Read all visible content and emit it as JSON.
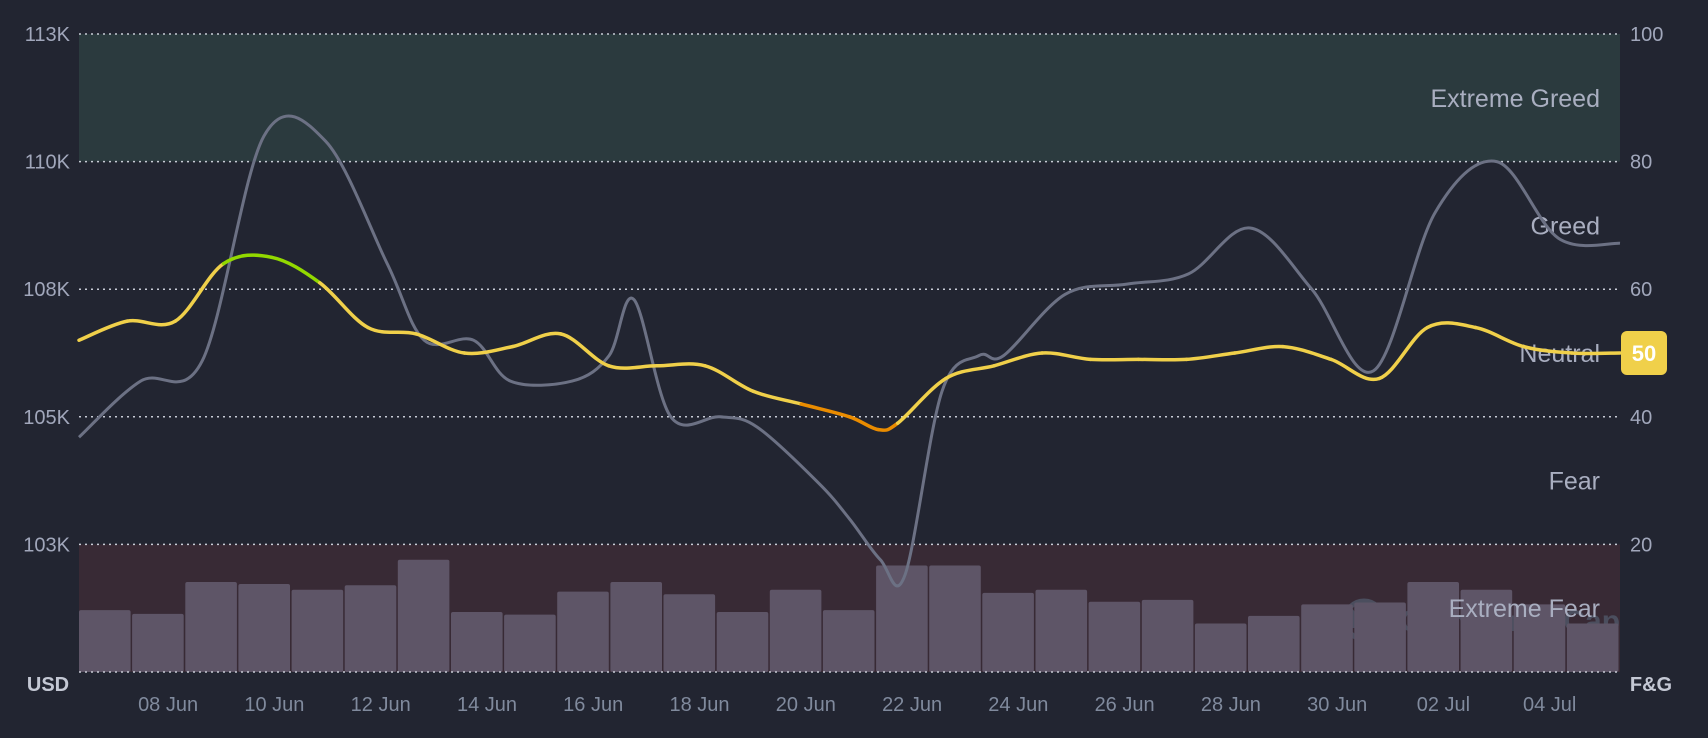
{
  "watermark": "CoinMarketCap",
  "chart_data": {
    "type": "line",
    "title": "",
    "left_axis": {
      "unit": "USD",
      "ticks": [
        "103K",
        "105K",
        "108K",
        "110K",
        "113K"
      ],
      "tick_values": [
        102500,
        105000,
        107500,
        110000,
        112500
      ],
      "range": [
        100000,
        112500
      ]
    },
    "right_axis": {
      "unit": "F&G",
      "ticks": [
        "20",
        "40",
        "60",
        "80",
        "100"
      ],
      "tick_values": [
        20,
        40,
        60,
        80,
        100
      ],
      "range": [
        0,
        100
      ]
    },
    "x_ticks": [
      "08 Jun",
      "10 Jun",
      "12 Jun",
      "14 Jun",
      "16 Jun",
      "18 Jun",
      "20 Jun",
      "22 Jun",
      "24 Jun",
      "26 Jun",
      "28 Jun",
      "30 Jun",
      "02 Jul",
      "04 Jul"
    ],
    "zones": [
      {
        "label": "Extreme Greed",
        "from": 80,
        "to": 100,
        "color": "#2b3a3e"
      },
      {
        "label": "Greed",
        "from": 60,
        "to": 80
      },
      {
        "label": "Neutral",
        "from": 40,
        "to": 60
      },
      {
        "label": "Fear",
        "from": 20,
        "to": 40
      },
      {
        "label": "Extreme Fear",
        "from": 0,
        "to": 20,
        "color": "#382a35"
      }
    ],
    "current_value": {
      "text": "50",
      "value": 50,
      "color": "#f0d04a"
    },
    "grid": true,
    "x_domain": [
      0,
      29
    ],
    "price_series": {
      "color": "#6c7184",
      "points": [
        [
          0,
          104600
        ],
        [
          1,
          105700
        ],
        [
          2,
          106100
        ],
        [
          3,
          110500
        ],
        [
          4,
          110400
        ],
        [
          5,
          108000
        ],
        [
          5.6,
          106500
        ],
        [
          6.4,
          106500
        ],
        [
          7,
          105700
        ],
        [
          8,
          105700
        ],
        [
          8.6,
          106200
        ],
        [
          9,
          107300
        ],
        [
          9.6,
          105000
        ],
        [
          10.4,
          105000
        ],
        [
          11,
          104800
        ],
        [
          12,
          103700
        ],
        [
          12.5,
          103000
        ],
        [
          13,
          102200
        ],
        [
          13.4,
          101900
        ],
        [
          14,
          105500
        ],
        [
          14.6,
          106200
        ],
        [
          15,
          106200
        ],
        [
          16,
          107400
        ],
        [
          17,
          107600
        ],
        [
          18,
          107800
        ],
        [
          19,
          108700
        ],
        [
          20,
          107500
        ],
        [
          21,
          105900
        ],
        [
          22,
          109000
        ],
        [
          23,
          110000
        ],
        [
          24,
          108500
        ],
        [
          25,
          108400
        ]
      ]
    },
    "fear_greed_series": {
      "color": "#f0d04a",
      "points": [
        [
          0,
          52
        ],
        [
          1,
          55
        ],
        [
          2,
          55
        ],
        [
          3,
          64
        ],
        [
          4,
          65
        ],
        [
          5,
          61
        ],
        [
          6,
          54
        ],
        [
          7,
          53
        ],
        [
          8,
          50
        ],
        [
          9,
          51
        ],
        [
          10,
          53
        ],
        [
          11,
          48
        ],
        [
          12,
          48
        ],
        [
          13,
          48
        ],
        [
          14,
          44
        ],
        [
          15,
          42
        ],
        [
          16,
          40
        ],
        [
          16.6,
          38
        ],
        [
          17,
          39
        ],
        [
          18,
          46
        ],
        [
          19,
          48
        ],
        [
          20,
          50
        ],
        [
          21,
          49
        ],
        [
          22,
          49
        ],
        [
          23,
          49
        ],
        [
          24,
          50
        ],
        [
          25,
          51
        ],
        [
          26,
          49
        ],
        [
          27,
          46
        ],
        [
          28,
          54
        ],
        [
          29,
          54
        ],
        [
          30,
          51
        ],
        [
          31,
          50
        ],
        [
          32,
          50
        ]
      ]
    },
    "volume_bars": {
      "color": "#5e5567",
      "values": [
        9.7,
        9.1,
        14.1,
        13.8,
        12.9,
        13.6,
        17.6,
        9.4,
        9.0,
        12.6,
        14.1,
        12.2,
        9.4,
        12.9,
        9.7,
        16.7,
        16.7,
        12.4,
        12.9,
        11.0,
        11.3,
        7.6,
        8.8,
        10.6,
        10.9,
        14.1,
        12.9,
        10.6,
        7.6
      ]
    }
  }
}
